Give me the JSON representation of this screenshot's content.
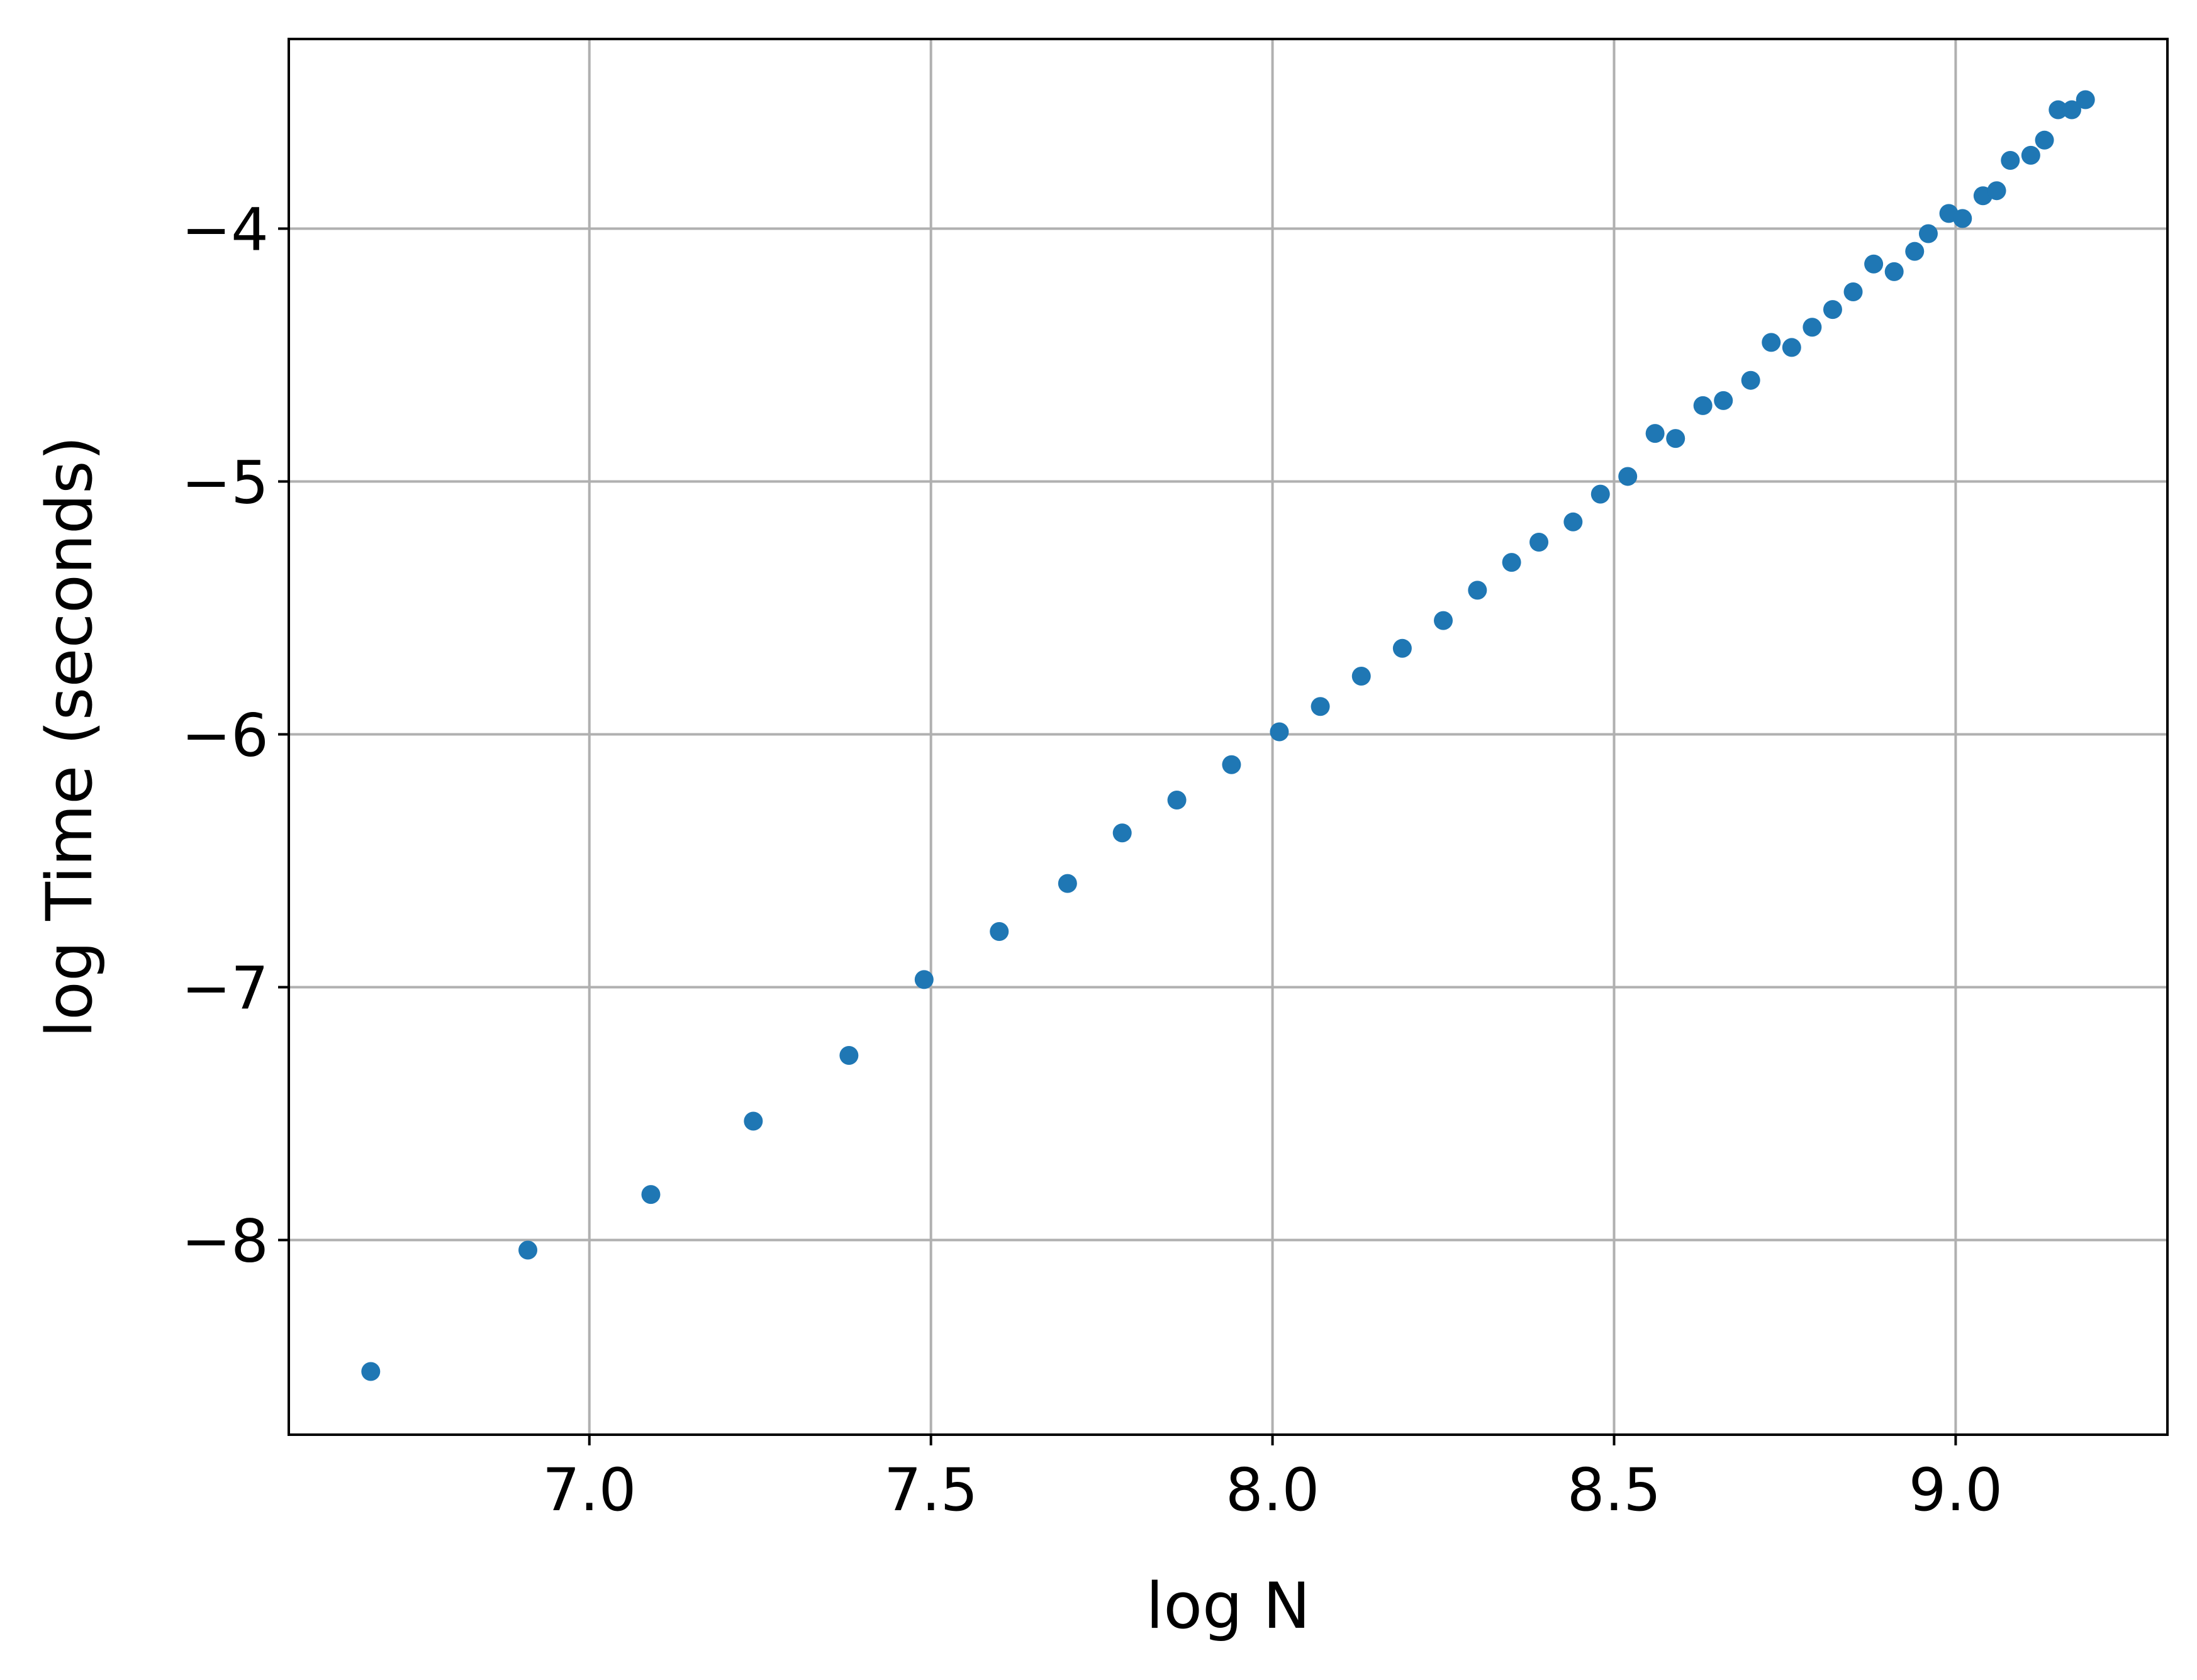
{
  "chart_data": {
    "type": "scatter",
    "title": "",
    "xlabel": "log N",
    "ylabel": "log Time (seconds)",
    "xlim": [
      6.56,
      9.31
    ],
    "ylim": [
      -8.77,
      -3.25
    ],
    "x_ticks": [
      7.0,
      7.5,
      8.0,
      8.5,
      9.0
    ],
    "x_tick_labels": [
      "7.0",
      "7.5",
      "8.0",
      "8.5",
      "9.0"
    ],
    "y_ticks": [
      -8,
      -7,
      -6,
      -5,
      -4
    ],
    "y_tick_labels": [
      "−8",
      "−7",
      "−6",
      "−5",
      "−4"
    ],
    "grid": true,
    "colors": {
      "marker": "#1f77b4",
      "grid": "#b0b0b0",
      "axes": "#000000"
    },
    "series": [
      {
        "x": [
          6.68,
          6.91,
          7.09,
          7.24,
          7.38,
          7.49,
          7.6,
          7.7,
          7.78,
          7.86,
          7.94,
          8.01,
          8.07,
          8.13,
          8.19,
          8.25,
          8.3,
          8.35,
          8.39,
          8.44,
          8.48,
          8.52,
          8.56,
          8.59,
          8.63,
          8.66,
          8.7,
          8.73,
          8.76,
          8.79,
          8.82,
          8.85,
          8.88,
          8.91,
          8.94,
          8.96,
          8.99,
          9.01,
          9.04,
          9.06,
          9.08,
          9.11,
          9.13,
          9.15,
          9.17,
          9.19
        ],
        "y": [
          -8.52,
          -8.04,
          -7.82,
          -7.53,
          -7.27,
          -6.97,
          -6.78,
          -6.59,
          -6.39,
          -6.26,
          -6.12,
          -5.99,
          -5.89,
          -5.77,
          -5.66,
          -5.55,
          -5.43,
          -5.32,
          -5.24,
          -5.16,
          -5.05,
          -4.98,
          -4.81,
          -4.83,
          -4.7,
          -4.68,
          -4.6,
          -4.45,
          -4.47,
          -4.39,
          -4.32,
          -4.25,
          -4.14,
          -4.17,
          -4.09,
          -4.02,
          -3.94,
          -3.96,
          -3.87,
          -3.85,
          -3.73,
          -3.71,
          -3.65,
          -3.53,
          -3.53,
          -3.49
        ]
      }
    ]
  }
}
